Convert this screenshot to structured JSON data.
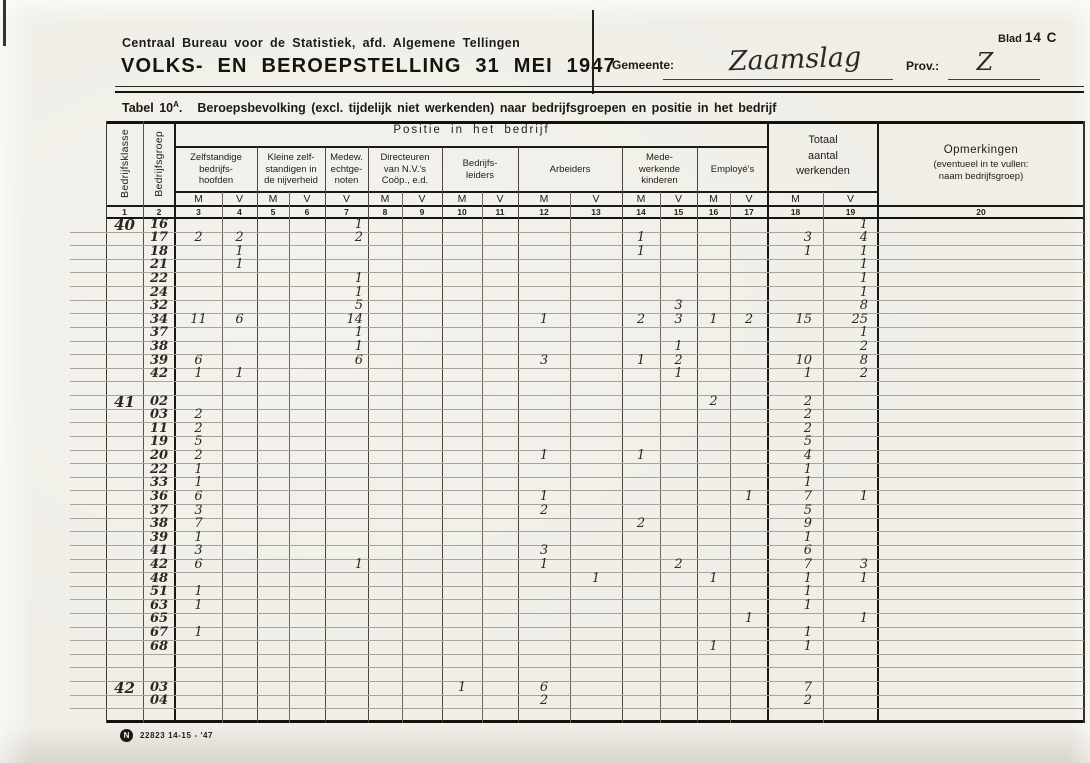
{
  "page": {
    "blad_label": "Blad",
    "blad_value": "14 C"
  },
  "header": {
    "org": "Centraal Bureau voor de Statistiek, afd. Algemene Tellingen",
    "title": "VOLKS- EN BEROEPSTELLING 31 MEI 1947",
    "gemeente_label": "Gemeente:",
    "gemeente_value": "Zaamslag",
    "prov_label": "Prov.:",
    "prov_value": "Z"
  },
  "table_title": {
    "tabel": "Tabel 10",
    "sup": "A",
    "dot": ".",
    "rest": "Beroepsbevolking (excl. tijdelijk niet werkenden) naar bedrijfsgroepen en positie in het bedrijf"
  },
  "table": {
    "klasse_label": "Bedrijfsklasse",
    "groep_label": "Bedrijfsgroep",
    "positie_label": "Positie in het bedrijf",
    "groups": [
      {
        "label": "Zelfstandige\nbedrijfs-\nhoofden"
      },
      {
        "label": "Kleine zelf-\nstandigen in\nde nijverheid"
      },
      {
        "label": "Medew.\nechtge-\nnoten"
      },
      {
        "label": "Directeuren\nvan N.V.'s\nCoöp., e.d."
      },
      {
        "label": "Bedrijfs-\nleiders"
      },
      {
        "label": "Arbeiders"
      },
      {
        "label": "Mede-\nwerkende\nkinderen"
      },
      {
        "label": "Employé's"
      }
    ],
    "totaal_label": "Totaal\naantal\nwerkenden",
    "opmerkingen_label": "Opmerkingen",
    "opmerkingen_sub": "(eventueel in te vullen:\nnaam bedrijfsgroep)",
    "mv_row": [
      "M",
      "V",
      "M",
      "V",
      "V",
      "M",
      "V",
      "M",
      "V",
      "M",
      "V",
      "M",
      "V",
      "M",
      "V",
      "M",
      "V"
    ],
    "col_numbers": [
      "1",
      "2",
      "3",
      "4",
      "5",
      "6",
      "7",
      "8",
      "9",
      "10",
      "11",
      "12",
      "13",
      "14",
      "15",
      "16",
      "17",
      "18",
      "19",
      "20"
    ]
  },
  "rows": [
    {
      "k": "40",
      "g": "16",
      "c": {
        "7": "1",
        "19": "1"
      }
    },
    {
      "g": "17",
      "c": {
        "3": "2",
        "4": "2",
        "7": "2",
        "14": "1",
        "18": "3",
        "19": "4"
      }
    },
    {
      "g": "18",
      "c": {
        "4": "1",
        "14": "1",
        "18": "1",
        "19": "1"
      }
    },
    {
      "g": "21",
      "c": {
        "4": "1",
        "19": "1"
      }
    },
    {
      "g": "22",
      "c": {
        "7": "1",
        "19": "1"
      }
    },
    {
      "g": "24",
      "c": {
        "7": "1",
        "19": "1"
      }
    },
    {
      "g": "32",
      "c": {
        "7": "5",
        "15": "3",
        "19": "8"
      }
    },
    {
      "g": "34",
      "c": {
        "3": "11",
        "4": "6",
        "7": "14",
        "12": "1",
        "14": "2",
        "15": "3",
        "16": "1",
        "17": "2",
        "18": "15",
        "19": "25"
      }
    },
    {
      "g": "37",
      "c": {
        "7": "1",
        "19": "1"
      }
    },
    {
      "g": "38",
      "c": {
        "7": "1",
        "15": "1",
        "19": "2"
      }
    },
    {
      "g": "39",
      "c": {
        "3": "6",
        "7": "6",
        "12": "3",
        "14": "1",
        "15": "2",
        "18": "10",
        "19": "8"
      }
    },
    {
      "g": "42",
      "c": {
        "3": "1",
        "4": "1",
        "15": "1",
        "18": "1",
        "19": "2"
      }
    },
    {
      "s": true
    },
    {
      "k": "41",
      "g": "02",
      "c": {
        "16": "2",
        "18": "2"
      }
    },
    {
      "g": "03",
      "c": {
        "3": "2",
        "18": "2"
      }
    },
    {
      "g": "11",
      "c": {
        "3": "2",
        "18": "2"
      }
    },
    {
      "g": "19",
      "c": {
        "3": "5",
        "18": "5"
      }
    },
    {
      "g": "20",
      "c": {
        "3": "2",
        "12": "1",
        "14": "1",
        "18": "4"
      }
    },
    {
      "g": "22",
      "c": {
        "3": "1",
        "18": "1"
      }
    },
    {
      "g": "33",
      "c": {
        "3": "1",
        "18": "1"
      }
    },
    {
      "g": "36",
      "c": {
        "3": "6",
        "12": "1",
        "17": "1",
        "18": "7",
        "19": "1"
      }
    },
    {
      "g": "37",
      "c": {
        "3": "3",
        "12": "2",
        "18": "5"
      }
    },
    {
      "g": "38",
      "c": {
        "3": "7",
        "14": "2",
        "18": "9"
      }
    },
    {
      "g": "39",
      "c": {
        "3": "1",
        "18": "1"
      }
    },
    {
      "g": "41",
      "c": {
        "3": "3",
        "12": "3",
        "18": "6"
      }
    },
    {
      "g": "42",
      "c": {
        "3": "6",
        "7": "1",
        "12": "1",
        "15": "2",
        "18": "7",
        "19": "3"
      }
    },
    {
      "g": "48",
      "c": {
        "13": "1",
        "16": "1",
        "18": "1",
        "19": "1"
      }
    },
    {
      "g": "51",
      "c": {
        "3": "1",
        "18": "1"
      }
    },
    {
      "g": "63",
      "c": {
        "3": "1",
        "18": "1"
      }
    },
    {
      "g": "65",
      "c": {
        "17": "1",
        "19": "1"
      }
    },
    {
      "g": "67",
      "c": {
        "3": "1",
        "18": "1"
      }
    },
    {
      "g": "68",
      "c": {
        "16": "1",
        "18": "1"
      }
    },
    {
      "s": true
    },
    {
      "s": true
    },
    {
      "k": "42",
      "g": "03",
      "c": {
        "10": "1",
        "12": "6",
        "18": "7"
      }
    },
    {
      "g": "04",
      "c": {
        "12": "2",
        "18": "2"
      }
    },
    {
      "s": true
    }
  ],
  "footer": {
    "mark": "N",
    "code": "22823 14-15 - '47"
  }
}
